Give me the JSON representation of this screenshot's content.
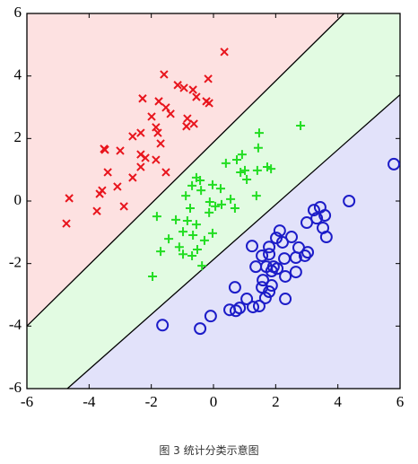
{
  "chart_data": {
    "type": "scatter",
    "caption": "图 3 统计分类示意图",
    "xlim": [
      -6,
      6
    ],
    "ylim": [
      -6,
      6
    ],
    "xticks": [
      -6,
      -4,
      -2,
      0,
      2,
      4,
      6
    ],
    "yticks": [
      -6,
      -4,
      -2,
      0,
      2,
      4,
      6
    ],
    "boundaries": [
      {
        "x": [
          -6,
          4.2
        ],
        "y": [
          -4,
          6
        ]
      },
      {
        "x": [
          -4.7,
          6
        ],
        "y": [
          -6,
          3.4
        ]
      }
    ],
    "region_colors": [
      "#fde1e1",
      "#e2fbe2",
      "#e2e2fa"
    ],
    "series": [
      {
        "color": "#e8141c",
        "marker": "x",
        "x": [
          0.35,
          -1.59,
          -2.28,
          -1.15,
          -0.95,
          -0.66,
          -0.17,
          -0.55,
          -0.23,
          -1.53,
          -1.76,
          -1.38,
          -1.99,
          -1.85,
          -1.79,
          -0.84,
          -0.63,
          -0.87,
          -2.6,
          -2.34,
          -3.49,
          -3.0,
          -1.7,
          -2.19,
          -2.34,
          -1.85,
          -2.34,
          -1.53,
          -3.4,
          -3.58,
          -3.66,
          -3.09,
          -4.64,
          -3.75,
          -4.73,
          -2.88,
          -2.6,
          -3.52,
          -0.14
        ],
        "y": [
          4.77,
          4.05,
          3.28,
          3.71,
          3.62,
          3.56,
          3.91,
          3.33,
          3.19,
          2.99,
          3.19,
          2.79,
          2.7,
          2.36,
          2.18,
          2.64,
          2.47,
          2.39,
          2.07,
          2.18,
          1.64,
          1.61,
          1.84,
          1.38,
          1.09,
          1.32,
          1.49,
          0.92,
          0.92,
          0.34,
          0.23,
          0.46,
          0.09,
          -0.32,
          -0.72,
          -0.17,
          0.75,
          1.67,
          3.13
        ]
      },
      {
        "color": "#22dd22",
        "marker": "+",
        "x": [
          2.8,
          1.47,
          1.44,
          1.73,
          1.85,
          0.92,
          0.75,
          0.4,
          1.01,
          0.87,
          1.07,
          1.41,
          -0.55,
          -0.69,
          -0.03,
          0.23,
          -0.4,
          -0.12,
          0.06,
          -0.14,
          0.26,
          0.55,
          1.38,
          0.69,
          -0.89,
          -0.75,
          -1.82,
          -1.21,
          -0.84,
          -0.55,
          -0.98,
          -0.66,
          -1.44,
          -1.7,
          -1.1,
          -0.52,
          -0.69,
          -0.29,
          -0.03,
          -1.96,
          -0.37,
          -0.98,
          -0.43
        ],
        "y": [
          2.41,
          2.18,
          1.7,
          1.09,
          1.03,
          1.49,
          1.32,
          1.21,
          0.98,
          0.92,
          0.69,
          0.98,
          0.75,
          0.49,
          0.52,
          0.4,
          0.34,
          -0.03,
          -0.17,
          -0.37,
          -0.11,
          0.06,
          0.17,
          -0.23,
          0.17,
          -0.23,
          -0.49,
          -0.6,
          -0.63,
          -0.75,
          -0.98,
          -1.09,
          -1.21,
          -1.61,
          -1.47,
          -1.55,
          -1.75,
          -1.26,
          -1.03,
          -2.41,
          -2.07,
          -1.7,
          0.66
        ]
      },
      {
        "color": "#1c1cc8",
        "marker": "o",
        "x": [
          5.8,
          4.36,
          3.43,
          3.23,
          3.58,
          3.32,
          3.0,
          3.52,
          3.63,
          2.13,
          2.51,
          2.02,
          1.24,
          2.22,
          1.79,
          2.74,
          3.03,
          2.94,
          2.65,
          2.28,
          1.79,
          1.56,
          1.36,
          1.7,
          1.93,
          2.05,
          1.87,
          2.65,
          2.31,
          1.59,
          1.87,
          1.56,
          1.79,
          0.69,
          1.07,
          1.67,
          2.31,
          0.84,
          1.27,
          0.52,
          0.72,
          -0.09,
          -0.43,
          -1.64,
          1.47
        ],
        "y": [
          1.18,
          0,
          -0.2,
          -0.29,
          -0.46,
          -0.55,
          -0.69,
          -0.86,
          -1.15,
          -0.95,
          -1.15,
          -1.18,
          -1.44,
          -1.32,
          -1.47,
          -1.49,
          -1.64,
          -1.75,
          -1.81,
          -1.84,
          -1.7,
          -1.75,
          -2.1,
          -2.1,
          -2.1,
          -2.16,
          -2.24,
          -2.27,
          -2.41,
          -2.53,
          -2.7,
          -2.76,
          -2.9,
          -2.76,
          -3.13,
          -3.1,
          -3.13,
          -3.42,
          -3.39,
          -3.48,
          -3.51,
          -3.68,
          -4.08,
          -3.97,
          -3.36
        ]
      }
    ]
  }
}
